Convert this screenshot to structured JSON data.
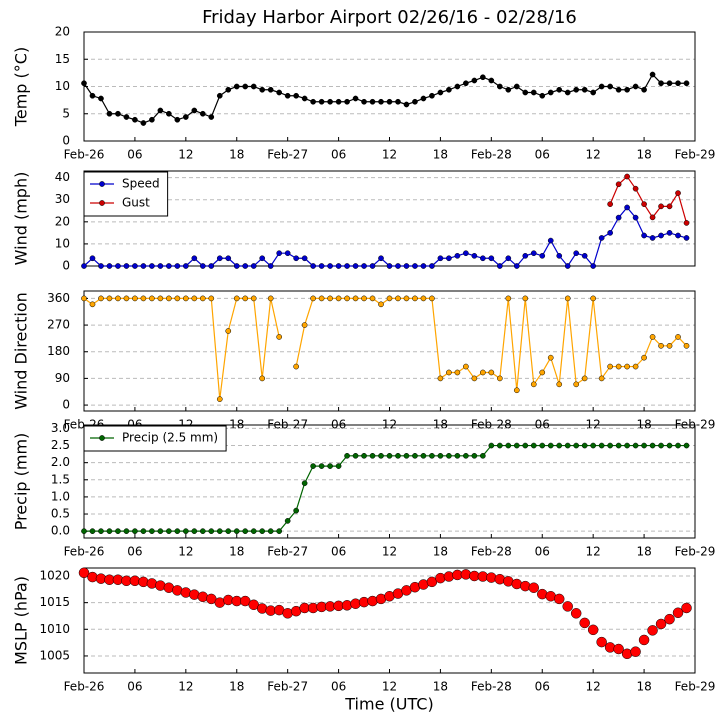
{
  "chart_data": [
    {
      "type": "line",
      "title": "Friday Harbor Airport 02/26/16 - 02/28/16",
      "y_label": "Temp (°C)",
      "x": [
        0,
        1,
        2,
        3,
        4,
        5,
        6,
        7,
        8,
        9,
        10,
        11,
        12,
        13,
        14,
        15,
        16,
        17,
        18,
        19,
        20,
        21,
        22,
        23,
        24,
        25,
        26,
        27,
        28,
        29,
        30,
        31,
        32,
        33,
        34,
        35,
        36,
        37,
        38,
        39,
        40,
        41,
        42,
        43,
        44,
        45,
        46,
        47,
        48,
        49,
        50,
        51,
        52,
        53,
        54,
        55,
        56,
        57,
        58,
        59,
        60,
        61,
        62,
        63,
        64,
        65,
        66,
        67,
        68,
        69,
        70,
        71
      ],
      "series": [
        {
          "color": "#000000",
          "values": [
            10.6,
            8.3,
            7.8,
            5.0,
            5.0,
            4.4,
            3.9,
            3.3,
            3.9,
            5.6,
            5.0,
            3.9,
            4.4,
            5.6,
            5.0,
            4.4,
            8.3,
            9.4,
            10.0,
            10.0,
            10.0,
            9.4,
            9.4,
            8.9,
            8.3,
            8.3,
            7.8,
            7.2,
            7.2,
            7.2,
            7.2,
            7.2,
            7.8,
            7.2,
            7.2,
            7.2,
            7.2,
            7.2,
            6.7,
            7.2,
            7.8,
            8.3,
            8.9,
            9.4,
            10.0,
            10.6,
            11.1,
            11.7,
            11.1,
            10.0,
            9.4,
            10.0,
            8.9,
            8.9,
            8.3,
            8.9,
            9.4,
            8.9,
            9.4,
            9.4,
            8.9,
            10.0,
            10.0,
            9.4,
            9.4,
            10.0,
            9.4,
            12.2,
            10.6,
            10.6,
            10.6,
            10.6
          ]
        }
      ],
      "xlim": [
        0,
        72
      ],
      "ylim": [
        0,
        20
      ],
      "yticks": [
        0,
        5,
        10,
        15,
        20
      ],
      "xticks": [
        {
          "value": 0,
          "label": "Feb-26"
        },
        {
          "value": 6,
          "label": "06"
        },
        12,
        18,
        {
          "value": 24,
          "label": "Feb-27"
        },
        {
          "value": 30,
          "label": "06"
        },
        {
          "value": 36,
          "label": "12"
        },
        {
          "value": 42,
          "label": "18"
        },
        {
          "value": 48,
          "label": "Feb-28"
        },
        {
          "value": 54,
          "label": "06"
        },
        {
          "value": 60,
          "label": "12"
        },
        {
          "value": 66,
          "label": "18"
        },
        {
          "value": 72,
          "label": "Feb-29"
        }
      ],
      "grid": true
    },
    {
      "type": "line",
      "y_label": "Wind (mph)",
      "x": [
        0,
        1,
        2,
        3,
        4,
        5,
        6,
        7,
        8,
        9,
        10,
        11,
        12,
        13,
        14,
        15,
        16,
        17,
        18,
        19,
        20,
        21,
        22,
        23,
        24,
        25,
        26,
        27,
        28,
        29,
        30,
        31,
        32,
        33,
        34,
        35,
        36,
        37,
        38,
        39,
        40,
        41,
        42,
        43,
        44,
        45,
        46,
        47,
        48,
        49,
        50,
        51,
        52,
        53,
        54,
        55,
        56,
        57,
        58,
        59,
        60,
        61,
        62,
        63,
        64,
        65,
        66,
        67,
        68,
        69,
        70,
        71
      ],
      "series": [
        {
          "name": "Speed",
          "color": "#0000cc",
          "values": [
            0,
            3.5,
            0,
            0,
            0,
            0,
            0,
            0,
            0,
            0,
            0,
            0,
            0,
            3.5,
            0,
            0,
            3.5,
            3.5,
            0,
            0,
            0,
            3.5,
            0,
            5.8,
            5.8,
            3.5,
            3.5,
            0,
            0,
            0,
            0,
            0,
            0,
            0,
            0,
            3.5,
            0,
            0,
            0,
            0,
            0,
            0,
            3.5,
            3.5,
            4.6,
            5.8,
            4.6,
            3.5,
            3.5,
            0,
            3.5,
            0,
            4.6,
            5.8,
            4.6,
            11.5,
            4.6,
            0,
            5.8,
            4.6,
            0,
            12.7,
            15,
            21.9,
            26.5,
            21.9,
            13.8,
            12.7,
            13.8,
            15,
            13.8,
            12.7
          ]
        },
        {
          "name": "Gust",
          "color": "#cc0000",
          "values": [
            null,
            null,
            null,
            null,
            null,
            null,
            null,
            null,
            null,
            null,
            null,
            null,
            null,
            null,
            null,
            null,
            null,
            null,
            null,
            null,
            null,
            null,
            null,
            null,
            null,
            null,
            null,
            null,
            null,
            null,
            null,
            null,
            null,
            null,
            null,
            null,
            null,
            null,
            null,
            null,
            null,
            null,
            null,
            null,
            null,
            null,
            null,
            null,
            null,
            null,
            null,
            null,
            null,
            null,
            null,
            null,
            null,
            null,
            null,
            null,
            null,
            null,
            28,
            37,
            40.5,
            35,
            28,
            22,
            27,
            27,
            33,
            19.5
          ]
        }
      ],
      "xlim": [
        0,
        72
      ],
      "ylim": [
        0,
        43
      ],
      "yticks": [
        0,
        10,
        20,
        30,
        40
      ],
      "grid": true,
      "legend": "upper left"
    },
    {
      "type": "line",
      "y_label": "Wind Direction",
      "x": [
        0,
        1,
        2,
        3,
        4,
        5,
        6,
        7,
        8,
        9,
        10,
        11,
        12,
        13,
        14,
        15,
        16,
        17,
        18,
        19,
        20,
        21,
        22,
        23,
        24,
        25,
        26,
        27,
        28,
        29,
        30,
        31,
        32,
        33,
        34,
        35,
        36,
        37,
        38,
        39,
        40,
        41,
        42,
        43,
        44,
        45,
        46,
        47,
        48,
        49,
        50,
        51,
        52,
        53,
        54,
        55,
        56,
        57,
        58,
        59,
        60,
        61,
        62,
        63,
        64,
        65,
        66,
        67,
        68,
        69,
        70,
        71
      ],
      "series": [
        {
          "color": "#ffa500",
          "values": [
            360,
            340,
            360,
            360,
            360,
            360,
            360,
            360,
            360,
            360,
            360,
            360,
            360,
            360,
            360,
            360,
            20,
            250,
            360,
            360,
            360,
            90,
            360,
            230,
            null,
            130,
            270,
            360,
            360,
            360,
            360,
            360,
            360,
            360,
            360,
            340,
            360,
            360,
            360,
            360,
            360,
            360,
            90,
            110,
            110,
            130,
            90,
            110,
            110,
            90,
            360,
            50,
            360,
            70,
            110,
            160,
            70,
            360,
            70,
            90,
            360,
            90,
            130,
            130,
            130,
            130,
            160,
            230,
            200,
            200,
            230,
            200
          ]
        }
      ],
      "xlim": [
        0,
        72
      ],
      "ylim": [
        -20,
        385
      ],
      "yticks": [
        0,
        90,
        180,
        270,
        360
      ],
      "xticks": [
        {
          "value": 0,
          "label": "Feb-26"
        },
        {
          "value": 6,
          "label": "06"
        },
        12,
        18,
        {
          "value": 24,
          "label": "Feb-27"
        },
        {
          "value": 30,
          "label": "06"
        },
        {
          "value": 36,
          "label": "12"
        },
        {
          "value": 42,
          "label": "18"
        },
        {
          "value": 48,
          "label": "Feb-28"
        },
        {
          "value": 54,
          "label": "06"
        },
        {
          "value": 60,
          "label": "12"
        },
        {
          "value": 66,
          "label": "18"
        },
        {
          "value": 72,
          "label": "Feb-29"
        }
      ],
      "grid": true
    },
    {
      "type": "line",
      "y_label": "Precip (mm)",
      "x": [
        0,
        1,
        2,
        3,
        4,
        5,
        6,
        7,
        8,
        9,
        10,
        11,
        12,
        13,
        14,
        15,
        16,
        17,
        18,
        19,
        20,
        21,
        22,
        23,
        24,
        25,
        26,
        27,
        28,
        29,
        30,
        31,
        32,
        33,
        34,
        35,
        36,
        37,
        38,
        39,
        40,
        41,
        42,
        43,
        44,
        45,
        46,
        47,
        48,
        49,
        50,
        51,
        52,
        53,
        54,
        55,
        56,
        57,
        58,
        59,
        60,
        61,
        62,
        63,
        64,
        65,
        66,
        67,
        68,
        69,
        70,
        71
      ],
      "series": [
        {
          "name": "Precip (2.5 mm)",
          "color": "#006400",
          "values": [
            0,
            0,
            0,
            0,
            0,
            0,
            0,
            0,
            0,
            0,
            0,
            0,
            0,
            0,
            0,
            0,
            0,
            0,
            0,
            0,
            0,
            0,
            0,
            0,
            0.3,
            0.6,
            1.4,
            1.9,
            1.9,
            1.9,
            1.9,
            2.2,
            2.2,
            2.2,
            2.2,
            2.2,
            2.2,
            2.2,
            2.2,
            2.2,
            2.2,
            2.2,
            2.2,
            2.2,
            2.2,
            2.2,
            2.2,
            2.2,
            2.5,
            2.5,
            2.5,
            2.5,
            2.5,
            2.5,
            2.5,
            2.5,
            2.5,
            2.5,
            2.5,
            2.5,
            2.5,
            2.5,
            2.5,
            2.5,
            2.5,
            2.5,
            2.5,
            2.5,
            2.5,
            2.5,
            2.5,
            2.5
          ]
        }
      ],
      "xlim": [
        0,
        72
      ],
      "ylim": [
        -0.2,
        3.1
      ],
      "yticks": [
        {
          "value": 0,
          "label": "0.0"
        },
        0.5,
        {
          "value": 1,
          "label": "1.0"
        },
        1.5,
        {
          "value": 2,
          "label": "2.0"
        },
        2.5,
        {
          "value": 3,
          "label": "3.0"
        }
      ],
      "xticks": [
        {
          "value": 0,
          "label": "Feb-26"
        },
        {
          "value": 6,
          "label": "06"
        },
        12,
        18,
        {
          "value": 24,
          "label": "Feb-27"
        },
        {
          "value": 30,
          "label": "06"
        },
        {
          "value": 36,
          "label": "12"
        },
        {
          "value": 42,
          "label": "18"
        },
        {
          "value": 48,
          "label": "Feb-28"
        },
        {
          "value": 54,
          "label": "06"
        },
        {
          "value": 60,
          "label": "12"
        },
        {
          "value": 66,
          "label": "18"
        },
        {
          "value": 72,
          "label": "Feb-29"
        }
      ],
      "grid": true,
      "legend": "upper left"
    },
    {
      "type": "scatter",
      "y_label": "MSLP (hPa)",
      "x_label": "Time (UTC)",
      "x": [
        0,
        1,
        2,
        3,
        4,
        5,
        6,
        7,
        8,
        9,
        10,
        11,
        12,
        13,
        14,
        15,
        16,
        17,
        18,
        19,
        20,
        21,
        22,
        23,
        24,
        25,
        26,
        27,
        28,
        29,
        30,
        31,
        32,
        33,
        34,
        35,
        36,
        37,
        38,
        39,
        40,
        41,
        42,
        43,
        44,
        45,
        46,
        47,
        48,
        49,
        50,
        51,
        52,
        53,
        54,
        55,
        56,
        57,
        58,
        59,
        60,
        61,
        62,
        63,
        64,
        65,
        66,
        67,
        68,
        69,
        70,
        71
      ],
      "series": [
        {
          "color": "#ff0000",
          "values": [
            1020.6,
            1019.8,
            1019.5,
            1019.3,
            1019.3,
            1019.1,
            1019.1,
            1018.9,
            1018.6,
            1018.2,
            1017.8,
            1017.3,
            1016.9,
            1016.5,
            1016.1,
            1015.7,
            1015.0,
            1015.5,
            1015.3,
            1015.3,
            1014.6,
            1013.9,
            1013.5,
            1013.6,
            1013.0,
            1013.4,
            1014.0,
            1014.0,
            1014.2,
            1014.3,
            1014.4,
            1014.5,
            1014.8,
            1015.1,
            1015.3,
            1015.7,
            1016.2,
            1016.7,
            1017.3,
            1017.9,
            1018.4,
            1018.9,
            1019.6,
            1019.9,
            1020.2,
            1020.3,
            1020.0,
            1019.9,
            1019.7,
            1019.4,
            1019.0,
            1018.5,
            1018.1,
            1017.8,
            1016.6,
            1016.2,
            1015.7,
            1014.3,
            1013.0,
            1011.2,
            1009.9,
            1007.6,
            1006.6,
            1006.3,
            1005.4,
            1005.8,
            1008.0,
            1009.8,
            1011.0,
            1011.9,
            1013.1,
            1014.0
          ]
        }
      ],
      "xlim": [
        0,
        72
      ],
      "ylim": [
        1001.8,
        1021.5
      ],
      "yticks": [
        1005,
        1010,
        1015,
        1020
      ],
      "xticks": [
        {
          "value": 0,
          "label": "Feb-26"
        },
        {
          "value": 6,
          "label": "06"
        },
        12,
        18,
        {
          "value": 24,
          "label": "Feb-27"
        },
        {
          "value": 30,
          "label": "06"
        },
        {
          "value": 36,
          "label": "12"
        },
        {
          "value": 42,
          "label": "18"
        },
        {
          "value": 48,
          "label": "Feb-28"
        },
        {
          "value": 54,
          "label": "06"
        },
        {
          "value": 60,
          "label": "12"
        },
        {
          "value": 66,
          "label": "18"
        },
        {
          "value": 72,
          "label": "Feb-29"
        }
      ],
      "grid": true
    }
  ]
}
